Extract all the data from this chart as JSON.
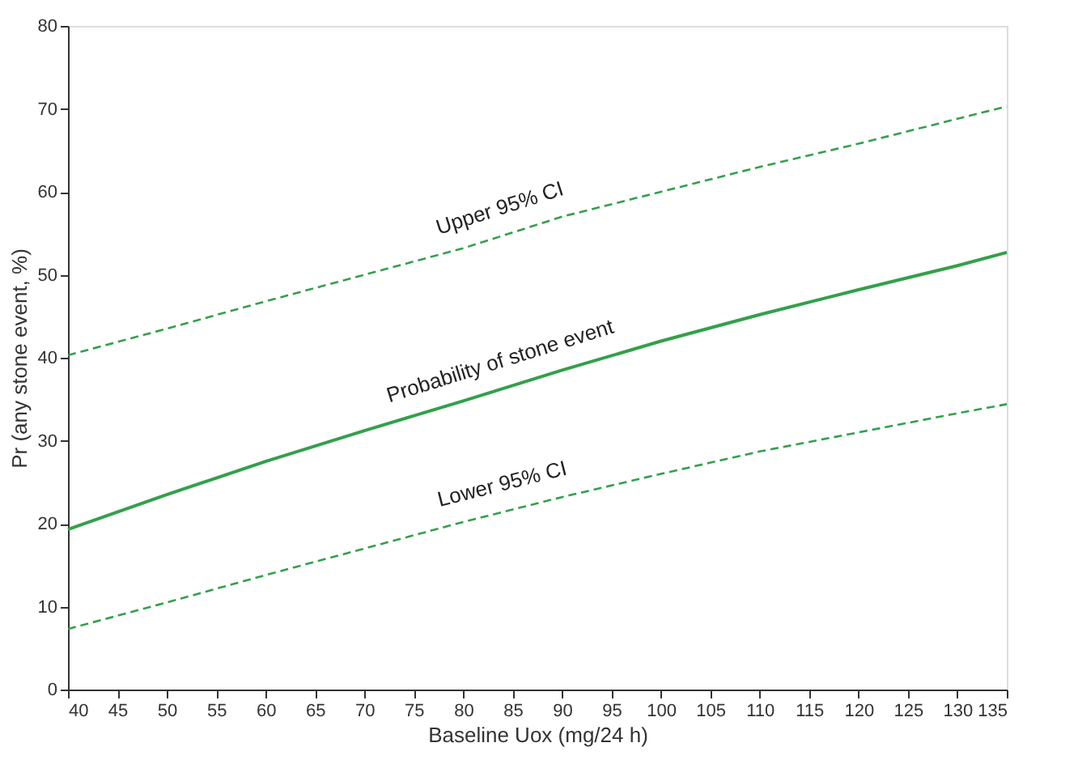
{
  "chart_data": {
    "type": "line",
    "xlabel": "Baseline Uox (mg/24 h)",
    "ylabel": "Pr (any stone event, %)",
    "x": [
      40,
      50,
      60,
      70,
      80,
      90,
      100,
      110,
      120,
      130,
      135
    ],
    "series": [
      {
        "name": "Upper 95% CI",
        "color": "#33a04a",
        "line_style": "dashed",
        "values": [
          40.3,
          43.5,
          46.8,
          50,
          53.2,
          57,
          60,
          63,
          65.8,
          68.8,
          70.3
        ]
      },
      {
        "name": "Probability of stone event",
        "color": "#33a04a",
        "line_style": "solid",
        "values": [
          19.3,
          23.5,
          27.5,
          31.2,
          34.8,
          38.5,
          42,
          45.2,
          48.2,
          51.1,
          52.7
        ]
      },
      {
        "name": "Lower 95% CI",
        "color": "#33a04a",
        "line_style": "dashed",
        "values": [
          7.3,
          10.5,
          13.8,
          17,
          20.2,
          23.2,
          26,
          28.7,
          31,
          33.3,
          34.4
        ]
      }
    ],
    "xlim": [
      40,
      135
    ],
    "ylim": [
      0,
      80
    ],
    "xticks": [
      40,
      45,
      50,
      55,
      60,
      65,
      70,
      75,
      80,
      85,
      90,
      95,
      100,
      105,
      110,
      115,
      120,
      125,
      130,
      135
    ],
    "yticks": [
      0,
      10,
      20,
      30,
      40,
      50,
      60,
      70,
      80
    ],
    "grid": false,
    "legend": false,
    "marker": "none"
  }
}
